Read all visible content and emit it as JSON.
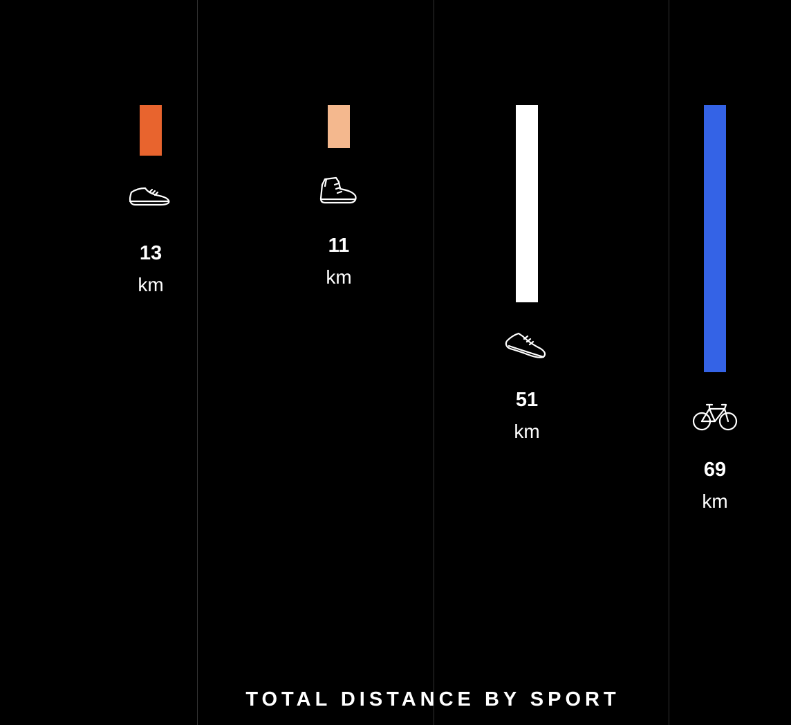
{
  "chart_data": {
    "type": "bar",
    "title": "TOTAL DISTANCE BY SPORT",
    "unit": "km",
    "categories": [
      "Shoe",
      "Hiking boot",
      "Running shoe",
      "Bicycle"
    ],
    "values": [
      13,
      11,
      51,
      69
    ],
    "colors": [
      "#e8642e",
      "#f4b88e",
      "#ffffff",
      "#3463e6"
    ],
    "icons": [
      "shoe-icon",
      "hiking-boot-icon",
      "running-shoe-icon",
      "bicycle-icon"
    ],
    "ylim": [
      0,
      69
    ],
    "grid": false,
    "legend": "none"
  }
}
